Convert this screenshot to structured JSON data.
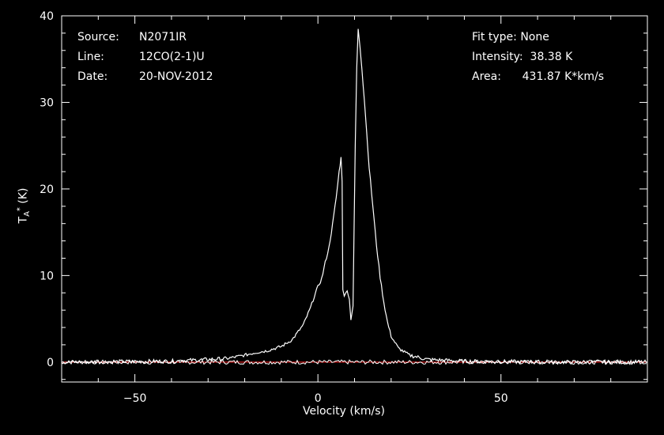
{
  "info": {
    "source_label": "Source:",
    "source_value": "N2071IR",
    "line_label": "Line:",
    "line_value": "12CO(2-1)U",
    "date_label": "Date:",
    "date_value": "20-NOV-2012",
    "fit_label": "Fit type:",
    "fit_value": "None",
    "intensity_label": "Intensity:",
    "intensity_value": "38.38 K",
    "area_label": "Area:",
    "area_value": "431.87 K*km/s"
  },
  "chart_data": {
    "type": "line",
    "title": "",
    "xlabel": "Velocity (km/s)",
    "ylabel": "T_A* (K)",
    "ylabel_parts": {
      "main": "T",
      "sub": "A",
      "sup": "*",
      "unit": " (K)"
    },
    "xlim": [
      -70,
      90
    ],
    "ylim": [
      -2.3,
      40
    ],
    "xticks": [
      -50,
      0,
      50
    ],
    "yticks": [
      0,
      10,
      20,
      30,
      40
    ],
    "grid": false,
    "colors": {
      "background": "#000000",
      "axes": "#ffffff",
      "spectrum": "#ffffff",
      "baseline": "#ff2020"
    },
    "baseline_y": 0,
    "series": [
      {
        "values_x": [
          -70,
          -40,
          -25,
          -20,
          -17,
          -14,
          -10,
          -7,
          -4,
          -2,
          -1,
          0,
          1,
          2,
          3,
          4,
          5,
          5.8,
          6.3,
          6.6,
          6.8,
          7.2,
          8.0,
          8.6,
          9.0,
          9.6,
          10.2,
          10.6,
          11.0,
          11.5,
          12.0,
          13.0,
          14.0,
          15.0,
          16.0,
          17.0,
          18.0,
          19.0,
          20.0,
          22.0,
          25.0,
          30.0,
          40.0,
          60.0,
          90.0
        ],
        "values_y": [
          0,
          0.1,
          0.4,
          0.8,
          1.1,
          1.3,
          1.8,
          2.6,
          4.3,
          6.3,
          7.6,
          8.7,
          9.6,
          11.5,
          13.2,
          15.9,
          19.0,
          22.0,
          23.6,
          21.0,
          8.5,
          7.5,
          8.4,
          7.2,
          5.0,
          6.5,
          25.0,
          34.0,
          38.4,
          36.5,
          34.0,
          28.5,
          22.5,
          18.0,
          13.5,
          9.8,
          6.9,
          4.6,
          3.0,
          1.6,
          0.8,
          0.3,
          0.1,
          0.0,
          0.0
        ]
      }
    ]
  }
}
